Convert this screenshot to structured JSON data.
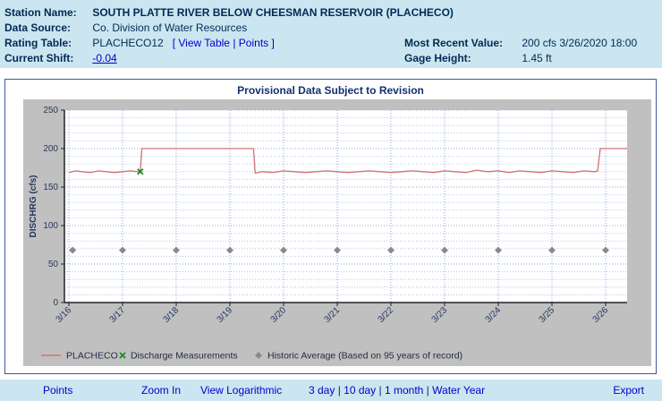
{
  "theme": {
    "header_bg": "#cbe6f0",
    "text": "#002a55",
    "link": "#0000cc",
    "panel_border": "#4056a8",
    "title": "#13306e"
  },
  "header": {
    "station_name_label": "Station Name:",
    "station_name": "SOUTH PLATTE RIVER BELOW CHEESMAN RESERVOIR (PLACHECO)",
    "data_source_label": "Data Source:",
    "data_source": "Co. Division of Water Resources",
    "rating_table_label": "Rating Table:",
    "rating_table": "PLACHECO12",
    "bracket_open": "[",
    "view_table_link": "View Table",
    "link_separator": "|",
    "points_link": "Points",
    "bracket_close": "]",
    "most_recent_label": "Most Recent Value:",
    "most_recent_value": "200 cfs 3/26/2020 18:00",
    "current_shift_label": "Current Shift:",
    "current_shift_value": "-0.04",
    "gage_height_label": "Gage Height:",
    "gage_height_value": "1.45 ft"
  },
  "panel": {
    "title": "Provisional Data Subject to Revision"
  },
  "chart_data": {
    "type": "line",
    "title": "Provisional Data Subject to Revision",
    "xlabel": "",
    "ylabel": "DISCHRG (cfs)",
    "ylim": [
      0,
      250
    ],
    "yticks": [
      0,
      50,
      100,
      150,
      200,
      250
    ],
    "minor_y_step": 10,
    "xlim": [
      0,
      10.4
    ],
    "xticks": [
      0,
      1,
      2,
      3,
      4,
      5,
      6,
      7,
      8,
      9,
      10
    ],
    "xtick_labels": [
      "3/16",
      "3/17",
      "3/18",
      "3/19",
      "3/20",
      "3/21",
      "3/22",
      "3/23",
      "3/24",
      "3/25",
      "3/26"
    ],
    "grid": true,
    "grid_color_minor": "#b4c3e2",
    "grid_color_major": "#8fa8d6",
    "legend_position": "bottom",
    "series": [
      {
        "name": "PLACHECO",
        "type": "line",
        "color": "#d27070",
        "points": [
          [
            0,
            169
          ],
          [
            0.12,
            171
          ],
          [
            0.25,
            170
          ],
          [
            0.4,
            169
          ],
          [
            0.55,
            171
          ],
          [
            0.7,
            170
          ],
          [
            0.85,
            169
          ],
          [
            1.0,
            170
          ],
          [
            1.15,
            171
          ],
          [
            1.28,
            170
          ],
          [
            1.33,
            170
          ],
          [
            1.36,
            200
          ],
          [
            1.6,
            200
          ],
          [
            2.0,
            200
          ],
          [
            2.5,
            200
          ],
          [
            3.0,
            200
          ],
          [
            3.44,
            200
          ],
          [
            3.47,
            168
          ],
          [
            3.6,
            170
          ],
          [
            3.8,
            169
          ],
          [
            4.0,
            171
          ],
          [
            4.2,
            170
          ],
          [
            4.4,
            169
          ],
          [
            4.6,
            170
          ],
          [
            4.8,
            171
          ],
          [
            5.0,
            170
          ],
          [
            5.2,
            169
          ],
          [
            5.4,
            170
          ],
          [
            5.6,
            171
          ],
          [
            5.8,
            170
          ],
          [
            6.0,
            169
          ],
          [
            6.2,
            170
          ],
          [
            6.4,
            171
          ],
          [
            6.6,
            170
          ],
          [
            6.8,
            169
          ],
          [
            7.0,
            171
          ],
          [
            7.2,
            170
          ],
          [
            7.4,
            169
          ],
          [
            7.6,
            172
          ],
          [
            7.8,
            170
          ],
          [
            8.0,
            171
          ],
          [
            8.2,
            169
          ],
          [
            8.4,
            171
          ],
          [
            8.6,
            170
          ],
          [
            8.8,
            169
          ],
          [
            9.0,
            171
          ],
          [
            9.2,
            170
          ],
          [
            9.4,
            169
          ],
          [
            9.6,
            171
          ],
          [
            9.8,
            170
          ],
          [
            9.85,
            171
          ],
          [
            9.9,
            200
          ],
          [
            10.4,
            200
          ]
        ]
      },
      {
        "name": "Discharge Measurements",
        "type": "point",
        "marker": "x",
        "color": "#1d8a1d",
        "points": [
          [
            1.33,
            170
          ]
        ]
      },
      {
        "name": "Historic Average (Based on 95 years of record)",
        "type": "point",
        "marker": "diamond",
        "color": "#8a8a8a",
        "points": [
          [
            0.07,
            68
          ],
          [
            1,
            68
          ],
          [
            2,
            68
          ],
          [
            3,
            68
          ],
          [
            4,
            68
          ],
          [
            5,
            68
          ],
          [
            6,
            68
          ],
          [
            7,
            68
          ],
          [
            8,
            68
          ],
          [
            9,
            68
          ],
          [
            10,
            68
          ]
        ]
      }
    ],
    "legend": [
      {
        "label": "PLACHECO",
        "marker": "line",
        "color": "#d27070"
      },
      {
        "label": "Discharge Measurements",
        "marker": "x",
        "color": "#1d8a1d"
      },
      {
        "label": "Historic Average (Based on 95 years of record)",
        "marker": "diamond",
        "color": "#8a8a8a"
      }
    ]
  },
  "footer": {
    "points": "Points",
    "zoom_in": "Zoom In",
    "view_logarithmic": "View Logarithmic",
    "ranges": [
      "3 day",
      "10 day",
      "1 month",
      "Water Year"
    ],
    "range_separator": "|",
    "export": "Export"
  }
}
